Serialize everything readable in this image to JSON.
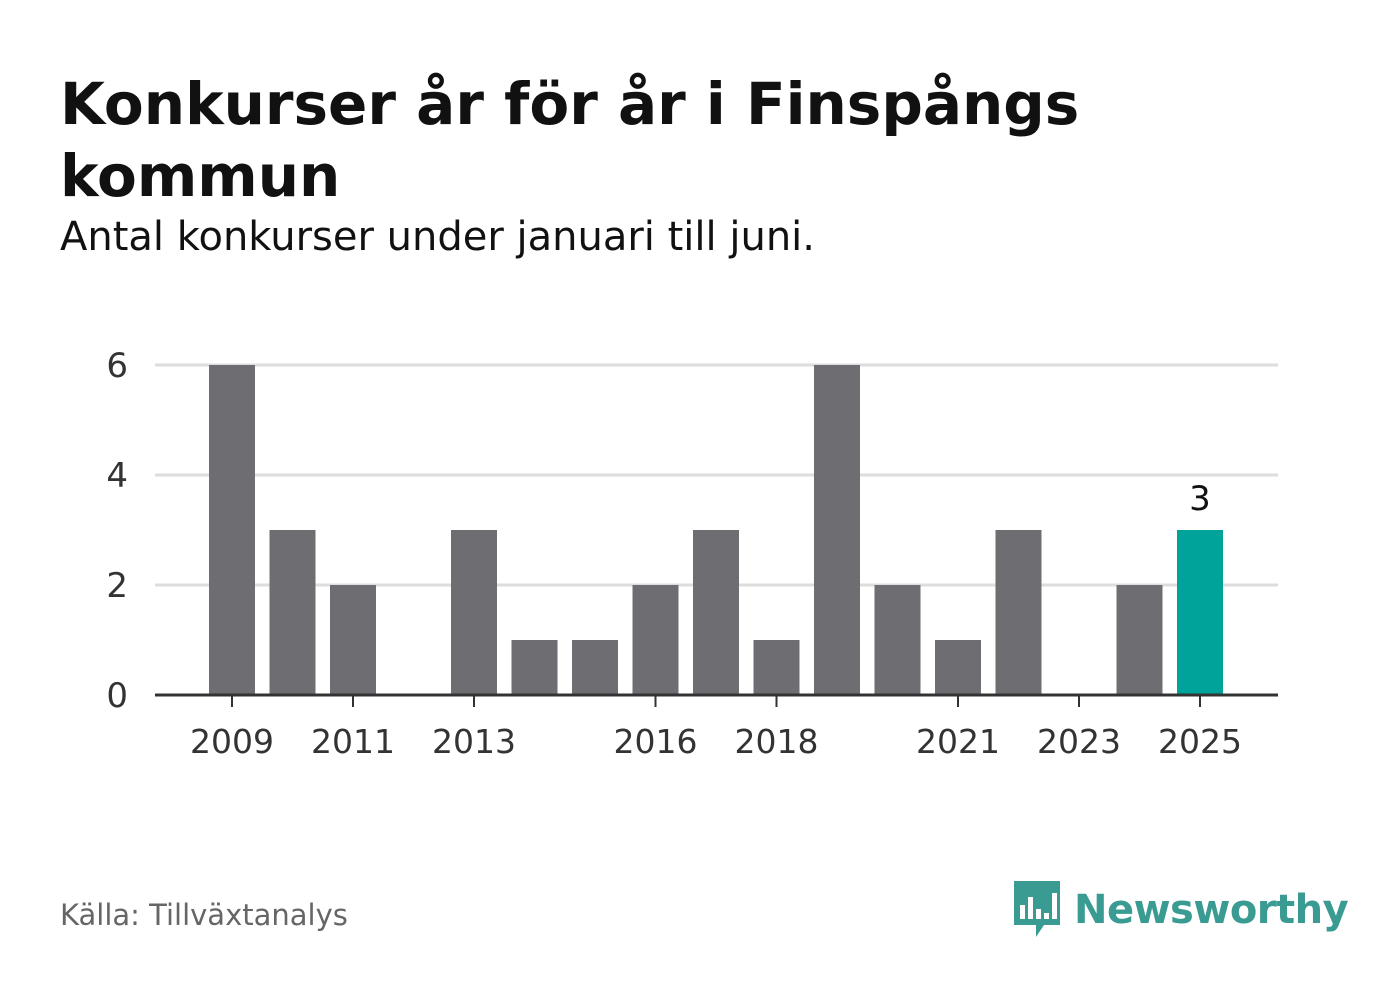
{
  "title": "Konkurser år för år i Finspångs kommun",
  "subtitle": "Antal konkurser under januari till juni.",
  "source": "Källa: Tillväxtanalys",
  "logo": {
    "text": "Newsworthy",
    "icon": "bar-chart-speech-bubble-icon"
  },
  "colors": {
    "bar": "#6e6d72",
    "highlight": "#00a39a",
    "grid": "#dddddd",
    "axis": "#333333",
    "logo": "#3a9b93"
  },
  "chart_data": {
    "type": "bar",
    "categories": [
      "2009",
      "2010",
      "2011",
      "2012",
      "2013",
      "2014",
      "2015",
      "2016",
      "2017",
      "2018",
      "2019",
      "2020",
      "2021",
      "2022",
      "2023",
      "2024",
      "2025"
    ],
    "values": [
      6,
      3,
      2,
      0,
      3,
      1,
      1,
      2,
      3,
      1,
      6,
      2,
      1,
      3,
      0,
      2,
      3
    ],
    "x_tick_labels": [
      "2009",
      "2011",
      "2013",
      "2016",
      "2018",
      "2021",
      "2023",
      "2025"
    ],
    "y_ticks": [
      0,
      2,
      4,
      6
    ],
    "ylim": [
      0,
      6
    ],
    "highlight": {
      "category": "2025",
      "label": "3"
    },
    "xlabel": "",
    "ylabel": "",
    "grid": true,
    "legend": "none"
  }
}
